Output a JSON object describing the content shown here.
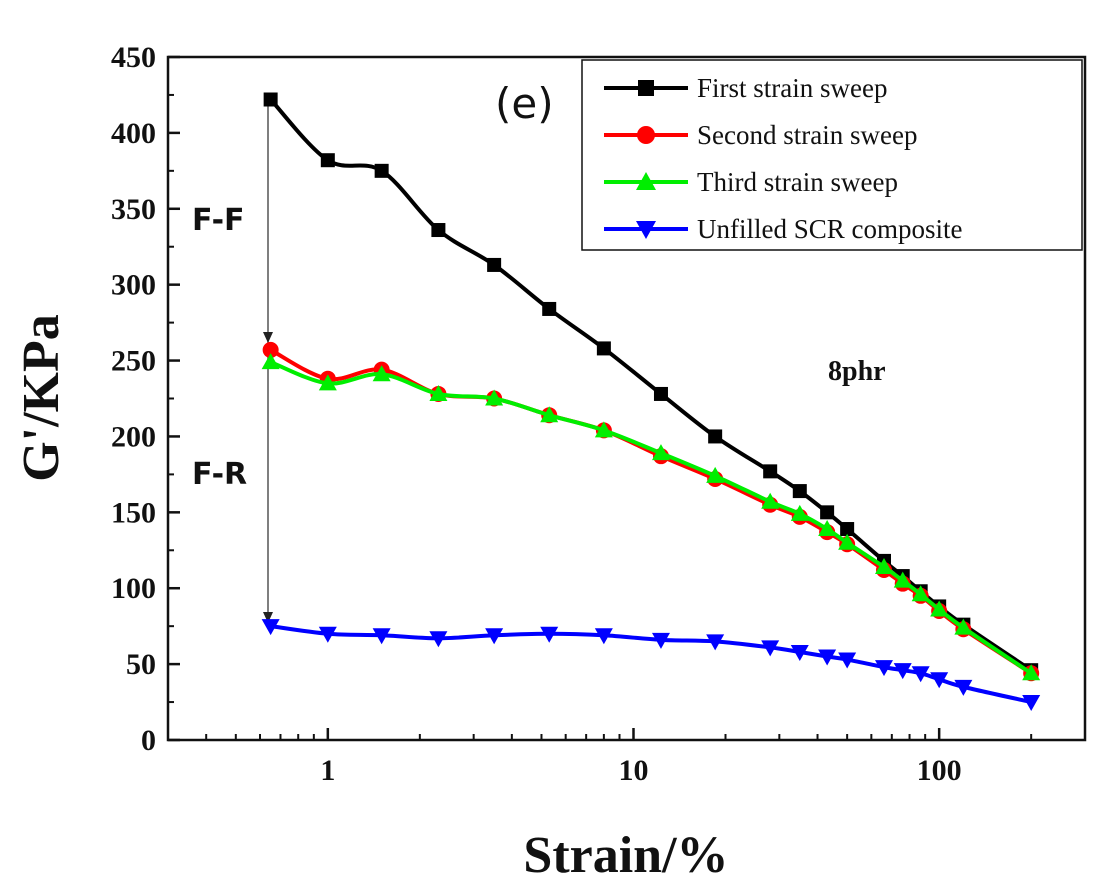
{
  "chart_data": {
    "type": "line",
    "xscale": "log",
    "xlabel": "Strain/%",
    "ylabel": "G'/KPa",
    "xlim": [
      0.3,
      300
    ],
    "ylim": [
      0,
      450
    ],
    "xticks_major": [
      1,
      10,
      100
    ],
    "xtick_labels": [
      "1",
      "10",
      "100"
    ],
    "yticks": [
      0,
      50,
      100,
      150,
      200,
      250,
      300,
      350,
      400,
      450
    ],
    "ytick_labels": [
      "0",
      "50",
      "100",
      "150",
      "200",
      "250",
      "300",
      "350",
      "400",
      "450"
    ],
    "panel_label": "(e)",
    "annotations": {
      "filler_filler": "F-F",
      "filler_rubber": "F-R",
      "loading": "8phr"
    },
    "legend_position": "top-right",
    "series": [
      {
        "name": "First strain sweep",
        "color": "#000000",
        "marker": "square",
        "x": [
          0.65,
          1.0,
          1.5,
          2.3,
          3.5,
          5.3,
          8.0,
          12.3,
          18.5,
          28,
          35,
          43,
          50,
          66,
          76,
          87,
          100,
          120,
          200
        ],
        "y": [
          422,
          382,
          375,
          336,
          313,
          284,
          258,
          228,
          200,
          177,
          164,
          150,
          139,
          118,
          108,
          98,
          88,
          76,
          46
        ]
      },
      {
        "name": "Second strain sweep",
        "color": "#ff0000",
        "marker": "circle",
        "x": [
          0.65,
          1.0,
          1.5,
          2.3,
          3.5,
          5.3,
          8.0,
          12.3,
          18.5,
          28,
          35,
          43,
          50,
          66,
          76,
          87,
          100,
          120,
          200
        ],
        "y": [
          257,
          238,
          244,
          228,
          225,
          214,
          204,
          187,
          172,
          155,
          147,
          137,
          129,
          112,
          103,
          95,
          85,
          73,
          44
        ]
      },
      {
        "name": "Third strain sweep",
        "color": "#00ee00",
        "marker": "triangle-up",
        "x": [
          0.65,
          1.0,
          1.5,
          2.3,
          3.5,
          5.3,
          8.0,
          12.3,
          18.5,
          28,
          35,
          43,
          50,
          66,
          76,
          87,
          100,
          120,
          200
        ],
        "y": [
          249,
          235,
          241,
          228,
          225,
          214,
          204,
          189,
          174,
          157,
          149,
          139,
          130,
          114,
          105,
          96,
          86,
          74,
          44
        ]
      },
      {
        "name": "Unfilled SCR composite",
        "color": "#0000ff",
        "marker": "triangle-down",
        "x": [
          0.65,
          1.0,
          1.5,
          2.3,
          3.5,
          5.3,
          8.0,
          12.3,
          18.5,
          28,
          35,
          43,
          50,
          66,
          76,
          87,
          100,
          120,
          200
        ],
        "y": [
          75,
          70,
          69,
          67,
          69,
          70,
          69,
          66,
          65,
          61,
          58,
          55,
          53,
          48,
          46,
          44,
          40,
          35,
          25
        ]
      }
    ]
  }
}
